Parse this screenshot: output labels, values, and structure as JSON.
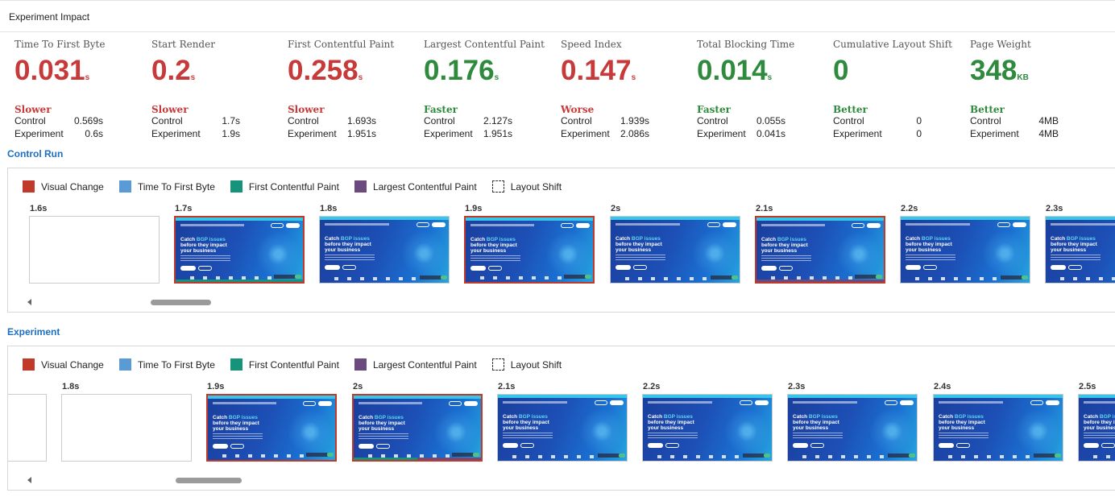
{
  "header": {
    "title": "Experiment Impact"
  },
  "metrics": [
    {
      "name": "Time To First Byte",
      "value": "0.031",
      "unit": "s",
      "verdict": "Slower",
      "tone": "red",
      "control_label": "Control",
      "control": "0.569s",
      "experiment_label": "Experiment",
      "experiment": "0.6s"
    },
    {
      "name": "Start Render",
      "value": "0.2",
      "unit": "s",
      "verdict": "Slower",
      "tone": "red",
      "control_label": "Control",
      "control": "1.7s",
      "experiment_label": "Experiment",
      "experiment": "1.9s"
    },
    {
      "name": "First Contentful Paint",
      "value": "0.258",
      "unit": "s",
      "verdict": "Slower",
      "tone": "red",
      "control_label": "Control",
      "control": "1.693s",
      "experiment_label": "Experiment",
      "experiment": "1.951s"
    },
    {
      "name": "Largest Contentful Paint",
      "value": "0.176",
      "unit": "s",
      "verdict": "Faster",
      "tone": "green",
      "control_label": "Control",
      "control": "2.127s",
      "experiment_label": "Experiment",
      "experiment": "1.951s"
    },
    {
      "name": "Speed Index",
      "value": "0.147",
      "unit": "s",
      "verdict": "Worse",
      "tone": "red",
      "control_label": "Control",
      "control": "1.939s",
      "experiment_label": "Experiment",
      "experiment": "2.086s"
    },
    {
      "name": "Total Blocking Time",
      "value": "0.014",
      "unit": "s",
      "verdict": "Faster",
      "tone": "green",
      "control_label": "Control",
      "control": "0.055s",
      "experiment_label": "Experiment",
      "experiment": "0.041s"
    },
    {
      "name": "Cumulative Layout Shift",
      "value": "0",
      "unit": "",
      "verdict": "Better",
      "tone": "green",
      "control_label": "Control",
      "control": "0",
      "experiment_label": "Experiment",
      "experiment": "0"
    },
    {
      "name": "Page Weight",
      "value": "348",
      "unit": "KB",
      "verdict": "Better",
      "tone": "green",
      "control_label": "Control",
      "control": "4MB",
      "experiment_label": "Experiment",
      "experiment": "4MB"
    }
  ],
  "colors": {
    "slower": "#c73a3a",
    "faster": "#2f8a3e",
    "section_title": "#1c6fc1",
    "visual_change": "#c0392b",
    "ttfb": "#5b9bd5",
    "fcp": "#16937a",
    "lcp": "#6b4a7e"
  },
  "legend": [
    {
      "label": "Visual Change",
      "color": "#c0392b",
      "icon": "visual-change-swatch"
    },
    {
      "label": "Time To First Byte",
      "color": "#5b9bd5",
      "icon": "ttfb-swatch"
    },
    {
      "label": "First Contentful Paint",
      "color": "#16937a",
      "icon": "fcp-swatch"
    },
    {
      "label": "Largest Contentful Paint",
      "color": "#6b4a7e",
      "icon": "lcp-swatch"
    },
    {
      "label": "Layout Shift",
      "color": "",
      "icon": "layout-shift-swatch"
    }
  ],
  "screenshot_text": {
    "line1": "Catch",
    "highlight": "BGP issues",
    "line2": "before they impact",
    "line3": "your business"
  },
  "control_run": {
    "title": "Control Run",
    "frames": [
      {
        "time": "1.6s",
        "blank": true,
        "visual_change": false,
        "marker": ""
      },
      {
        "time": "1.7s",
        "blank": false,
        "visual_change": true,
        "marker": "fcp"
      },
      {
        "time": "1.8s",
        "blank": false,
        "visual_change": false,
        "marker": ""
      },
      {
        "time": "1.9s",
        "blank": false,
        "visual_change": true,
        "marker": ""
      },
      {
        "time": "2s",
        "blank": false,
        "visual_change": false,
        "marker": ""
      },
      {
        "time": "2.1s",
        "blank": false,
        "visual_change": true,
        "marker": "lcp"
      },
      {
        "time": "2.2s",
        "blank": false,
        "visual_change": false,
        "marker": ""
      },
      {
        "time": "2.3s",
        "blank": false,
        "visual_change": false,
        "marker": ""
      }
    ],
    "scroll_position": 0.12
  },
  "experiment": {
    "title": "Experiment",
    "frames": [
      {
        "time": "",
        "blank": true,
        "visual_change": false,
        "marker": ""
      },
      {
        "time": "1.8s",
        "blank": true,
        "visual_change": false,
        "marker": ""
      },
      {
        "time": "1.9s",
        "blank": false,
        "visual_change": true,
        "marker": ""
      },
      {
        "time": "2s",
        "blank": false,
        "visual_change": true,
        "marker": "fcp-lcp"
      },
      {
        "time": "2.1s",
        "blank": false,
        "visual_change": false,
        "marker": ""
      },
      {
        "time": "2.2s",
        "blank": false,
        "visual_change": false,
        "marker": ""
      },
      {
        "time": "2.3s",
        "blank": false,
        "visual_change": false,
        "marker": ""
      },
      {
        "time": "2.4s",
        "blank": false,
        "visual_change": false,
        "marker": ""
      },
      {
        "time": "2.5s",
        "blank": false,
        "visual_change": false,
        "marker": ""
      }
    ],
    "scroll_position": 0.15
  }
}
